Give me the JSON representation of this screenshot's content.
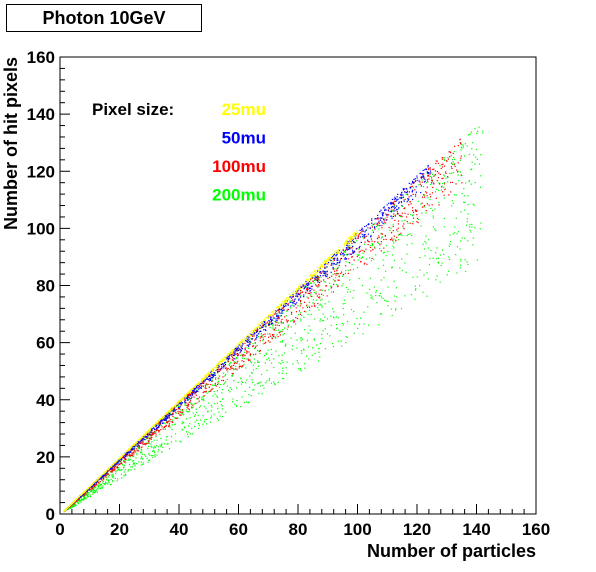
{
  "chart_data": {
    "type": "scatter",
    "title": "Photon 10GeV",
    "xlabel": "Number of particles",
    "ylabel": "Number of hit pixels",
    "xlim": [
      0,
      160
    ],
    "ylim": [
      0,
      160
    ],
    "xticks": [
      0,
      20,
      40,
      60,
      80,
      100,
      120,
      140,
      160
    ],
    "yticks": [
      0,
      20,
      40,
      60,
      80,
      100,
      120,
      140,
      160
    ],
    "grid": false,
    "legend": {
      "title": "Pixel size:",
      "placement": "top-left",
      "entries": [
        {
          "label": "25mu",
          "color": "#ffff00"
        },
        {
          "label": "50mu",
          "color": "#0000ff"
        },
        {
          "label": "100mu",
          "color": "#ff0000"
        },
        {
          "label": "200mu",
          "color": "#00ff00"
        }
      ]
    },
    "series": [
      {
        "label": "25mu",
        "color": "#ffff00",
        "slope_range": [
          0.98,
          1.0
        ],
        "x_range": [
          1,
          100
        ],
        "points": [
          [
            2,
            2
          ],
          [
            10,
            9.9
          ],
          [
            20,
            19.8
          ],
          [
            30,
            29.7
          ],
          [
            40,
            39.6
          ],
          [
            50,
            49.5
          ],
          [
            60,
            59.4
          ],
          [
            70,
            69.3
          ],
          [
            80,
            79.2
          ],
          [
            90,
            89.1
          ],
          [
            100,
            99
          ]
        ]
      },
      {
        "label": "50mu",
        "color": "#0000ff",
        "slope_range": [
          0.93,
          0.99
        ],
        "x_range": [
          1,
          125
        ],
        "points": [
          [
            2,
            1.9
          ],
          [
            20,
            19
          ],
          [
            40,
            38
          ],
          [
            60,
            57
          ],
          [
            80,
            76
          ],
          [
            100,
            95
          ],
          [
            120,
            114
          ],
          [
            125,
            118
          ]
        ]
      },
      {
        "label": "100mu",
        "color": "#ff0000",
        "slope_range": [
          0.85,
          0.98
        ],
        "x_range": [
          1,
          135
        ],
        "points": [
          [
            3,
            2.7
          ],
          [
            20,
            18
          ],
          [
            40,
            36
          ],
          [
            60,
            54
          ],
          [
            80,
            72
          ],
          [
            100,
            90
          ],
          [
            120,
            108
          ],
          [
            135,
            120
          ]
        ]
      },
      {
        "label": "200mu",
        "color": "#00ff00",
        "slope_range": [
          0.62,
          0.97
        ],
        "x_range": [
          2,
          142
        ],
        "points": [
          [
            3,
            2.4
          ],
          [
            20,
            15
          ],
          [
            40,
            31
          ],
          [
            60,
            47
          ],
          [
            80,
            62
          ],
          [
            100,
            78
          ],
          [
            120,
            94
          ],
          [
            140,
            122
          ]
        ]
      }
    ]
  }
}
